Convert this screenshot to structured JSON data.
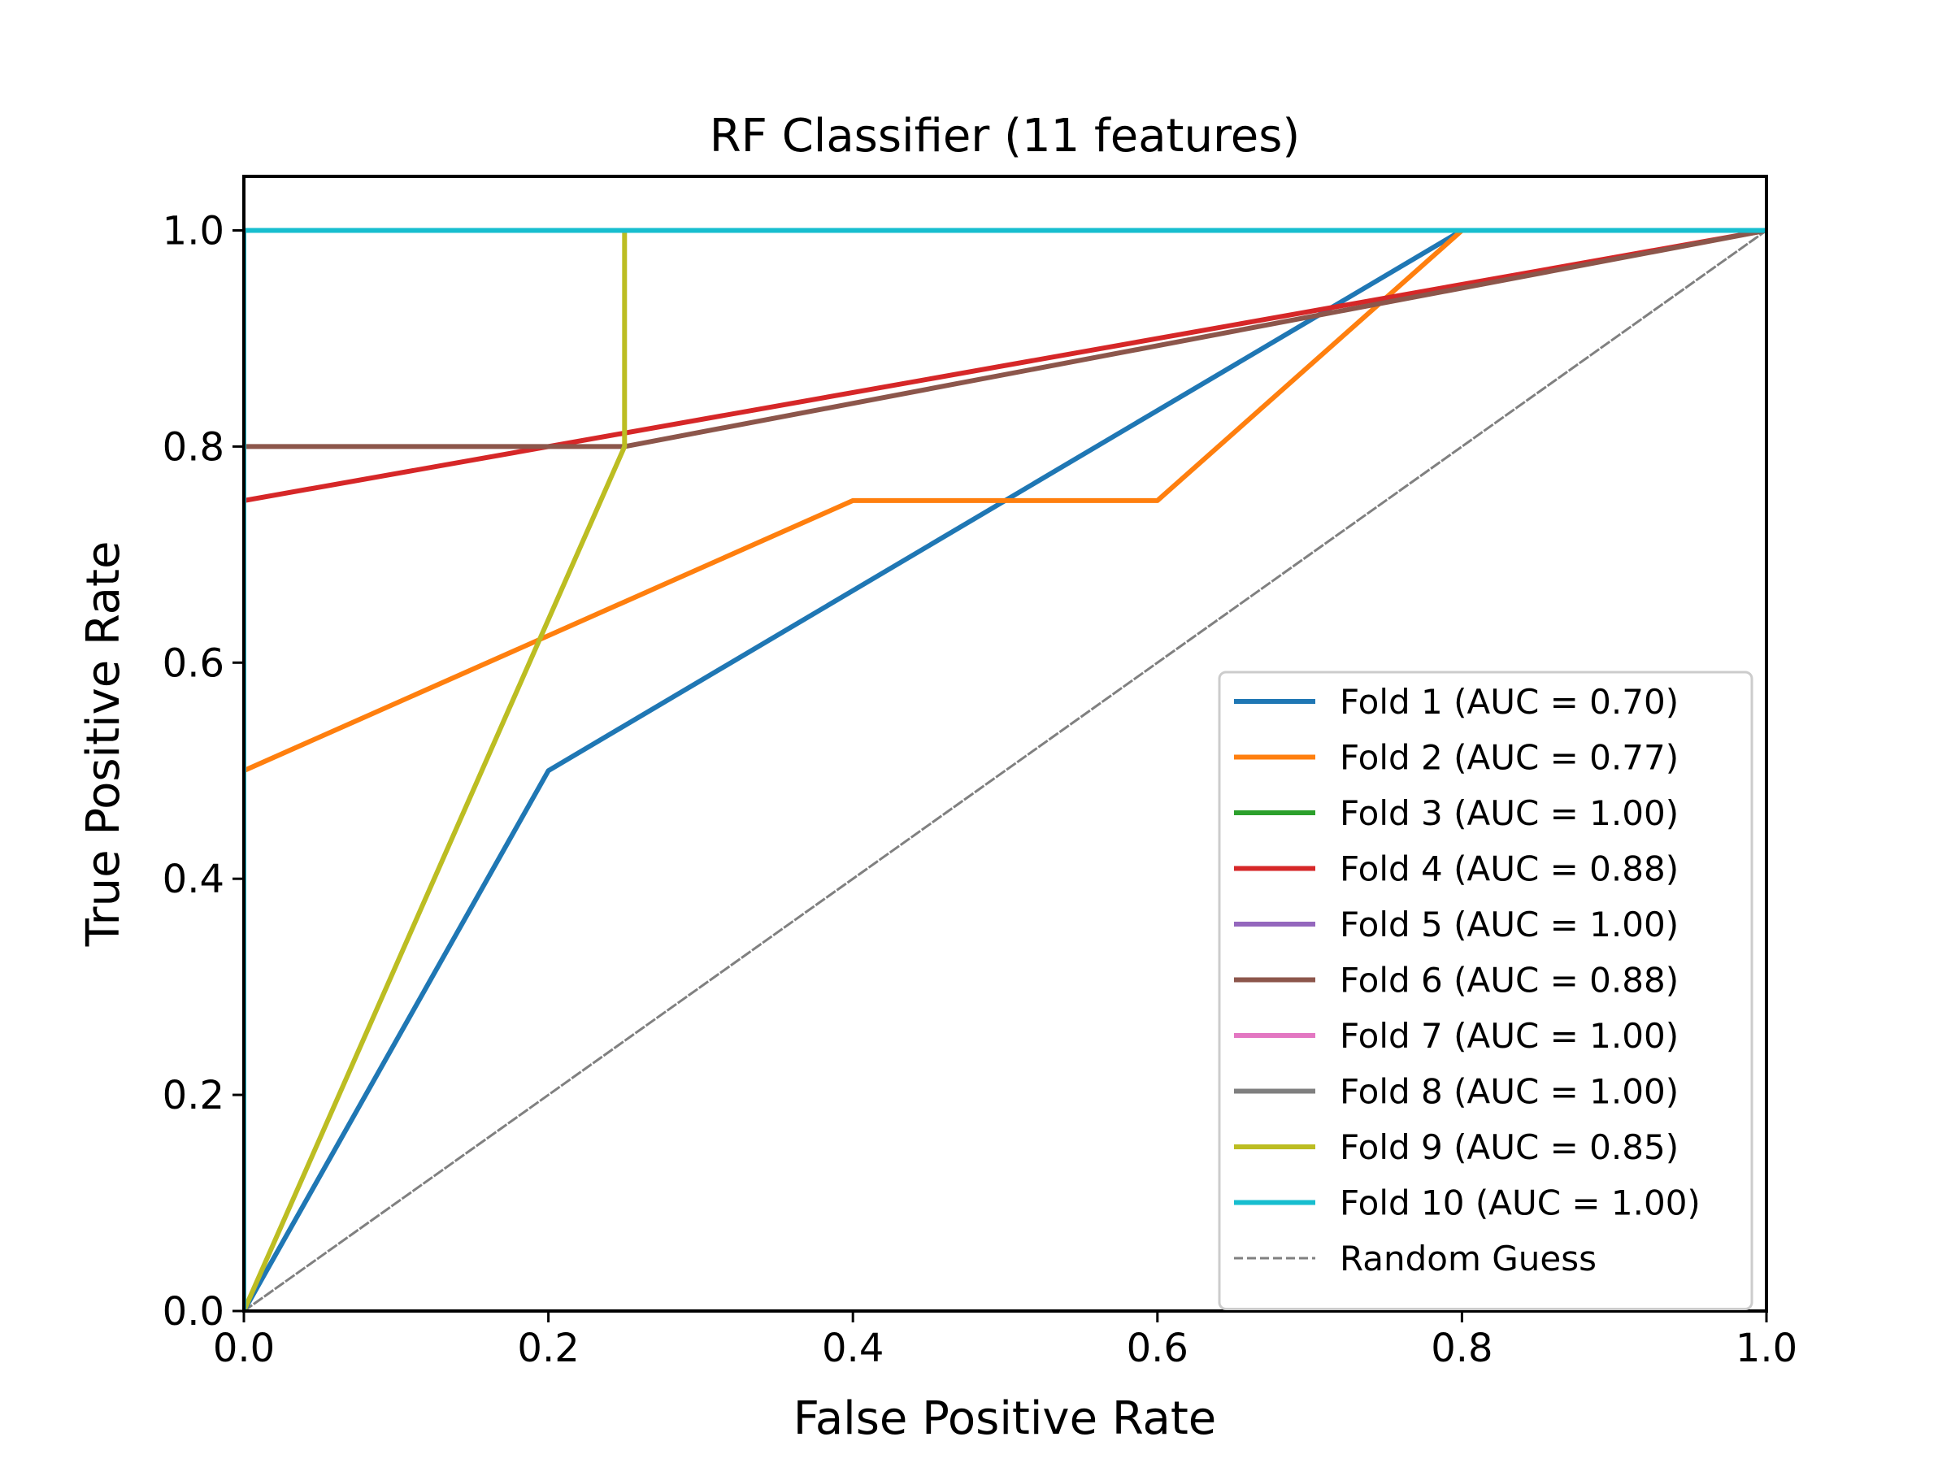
{
  "chart_data": {
    "type": "line",
    "title": "RF Classifier (11 features)",
    "xlabel": "False Positive Rate",
    "ylabel": "True Positive Rate",
    "xlim": [
      0.0,
      1.0
    ],
    "ylim": [
      0.0,
      1.05
    ],
    "grid": false,
    "legend_position": "lower-right",
    "x_ticks": [
      "0.0",
      "0.2",
      "0.4",
      "0.6",
      "0.8",
      "1.0"
    ],
    "y_ticks": [
      "0.0",
      "0.2",
      "0.4",
      "0.6",
      "0.8",
      "1.0"
    ],
    "series": [
      {
        "name": "Fold 1 (AUC = 0.70)",
        "color": "#1f77b4",
        "x": [
          0.0,
          0.2,
          0.8,
          1.0
        ],
        "y": [
          0.0,
          0.5,
          1.0,
          1.0
        ]
      },
      {
        "name": "Fold 2 (AUC = 0.77)",
        "color": "#ff7f0e",
        "x": [
          0.0,
          0.4,
          0.6,
          0.8,
          1.0
        ],
        "y": [
          0.5,
          0.75,
          0.75,
          1.0,
          1.0
        ]
      },
      {
        "name": "Fold 3 (AUC = 1.00)",
        "color": "#2ca02c",
        "x": [
          0.0,
          0.0,
          1.0
        ],
        "y": [
          0.0,
          1.0,
          1.0
        ]
      },
      {
        "name": "Fold 4 (AUC = 0.88)",
        "color": "#d62728",
        "x": [
          0.0,
          1.0
        ],
        "y": [
          0.75,
          1.0
        ]
      },
      {
        "name": "Fold 5 (AUC = 1.00)",
        "color": "#9467bd",
        "x": [
          0.0,
          0.0,
          1.0
        ],
        "y": [
          0.0,
          1.0,
          1.0
        ]
      },
      {
        "name": "Fold 6 (AUC = 0.88)",
        "color": "#8c564b",
        "x": [
          0.0,
          0.25,
          1.0
        ],
        "y": [
          0.8,
          0.8,
          1.0
        ]
      },
      {
        "name": "Fold 7 (AUC = 1.00)",
        "color": "#e377c2",
        "x": [
          0.0,
          0.0,
          1.0
        ],
        "y": [
          0.0,
          1.0,
          1.0
        ]
      },
      {
        "name": "Fold 8 (AUC = 1.00)",
        "color": "#7f7f7f",
        "x": [
          0.0,
          0.0,
          1.0
        ],
        "y": [
          0.0,
          1.0,
          1.0
        ]
      },
      {
        "name": "Fold 9 (AUC = 0.85)",
        "color": "#bcbd22",
        "x": [
          0.0,
          0.25,
          0.25,
          1.0
        ],
        "y": [
          0.0,
          0.8,
          1.0,
          1.0
        ]
      },
      {
        "name": "Fold 10 (AUC = 1.00)",
        "color": "#17becf",
        "x": [
          0.0,
          0.0,
          1.0
        ],
        "y": [
          0.0,
          1.0,
          1.0
        ]
      },
      {
        "name": "Random Guess",
        "color": "#808080",
        "dashed": true,
        "x": [
          0.0,
          1.0
        ],
        "y": [
          0.0,
          1.0
        ]
      }
    ]
  }
}
